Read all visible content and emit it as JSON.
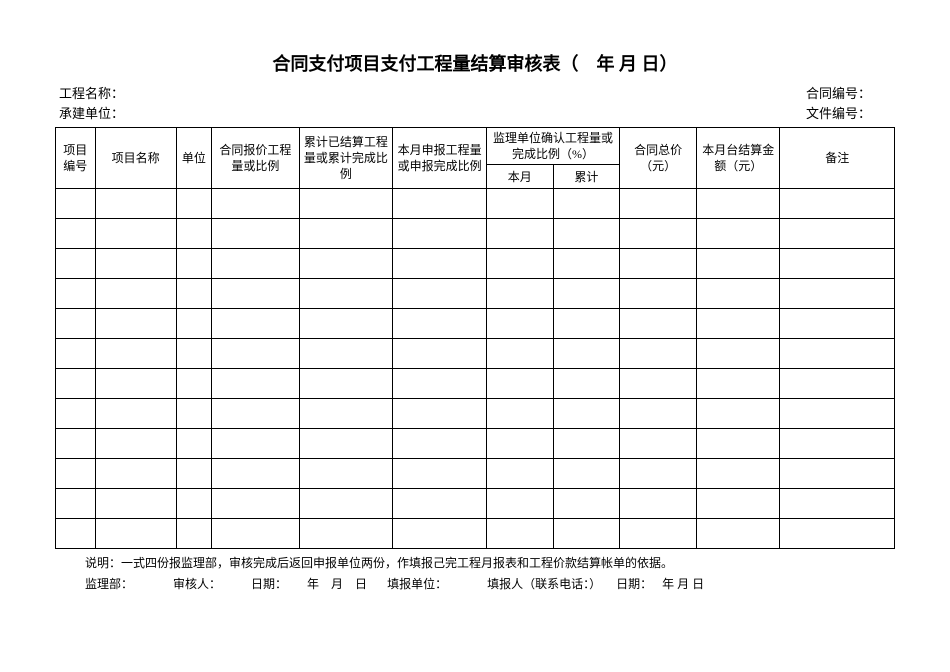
{
  "title": "合同支付项目支付工程量结算审核表（　年 月 日）",
  "meta": {
    "project_name_label": "工程名称：",
    "contract_no_label": "合同编号：",
    "contractor_label": "承建单位：",
    "doc_no_label": "文件编号："
  },
  "columns": {
    "c1": "项目编号",
    "c2": "项目名称",
    "c3": "单位",
    "c4": "合同报价工程量或比例",
    "c5": "累计已结算工程量或累计完成比例",
    "c6": "本月申报工程量或申报完成比例",
    "c7": "监理单位确认工程量或完成比例（%）",
    "c7a": "本月",
    "c7b": "累计",
    "c8": "合同总价（元）",
    "c9": "本月台结算金额（元）",
    "c10": "备注"
  },
  "widths": {
    "c1": 38,
    "c2": 78,
    "c3": 34,
    "c4": 84,
    "c5": 90,
    "c6": 90,
    "c7a": 64,
    "c7b": 64,
    "c8": 74,
    "c9": 80,
    "c10": 110
  },
  "body_row_count": 12,
  "footer": {
    "line1": "说明：一式四份报监理部，审核完成后返回申报单位两份，作填报己完工程月报表和工程价款结算帐单的依据。",
    "p_supervision": "监理部：",
    "p_reviewer": "审核人：",
    "p_date1_label": "日期：",
    "p_date1_value": "年　月　日",
    "p_fillunit": "填报单位：",
    "p_filler": "填报人（联系电话：）",
    "p_date2_label": "日期：",
    "p_date2_value": "年 月 日"
  },
  "colors": {
    "background": "#ffffff",
    "text": "#000000",
    "border": "#000000"
  }
}
